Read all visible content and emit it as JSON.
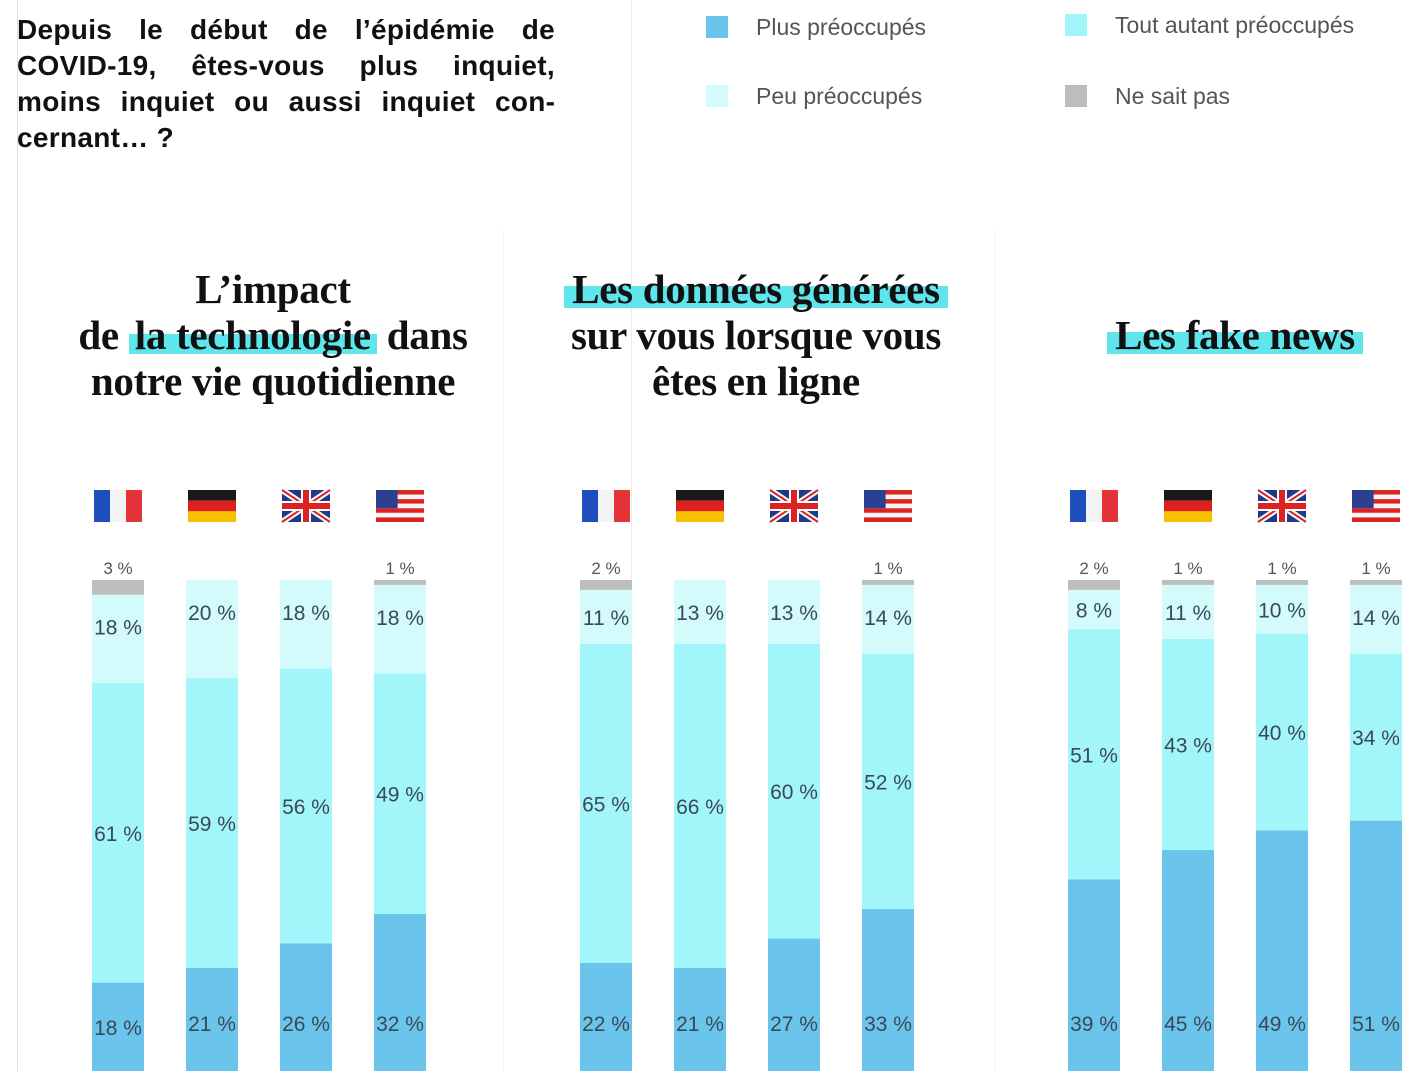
{
  "question": "Depuis le début de l’épidémie de COVID-19, êtes-vous plus inquiet, moins inquiet ou aussi inquiet con­cernant… ?",
  "legend": [
    {
      "label": "Plus préoccupés",
      "color": "#6ac4ec"
    },
    {
      "label": "Tout autant préoccupés",
      "color": "#a2f6fa"
    },
    {
      "label": "Peu préoccupés",
      "color": "#d4fbfc"
    },
    {
      "label": "Ne sait pas",
      "color": "#bdbdbd"
    }
  ],
  "panels": [
    {
      "title_lines": [
        [
          "L’impact"
        ],
        [
          "de ",
          "la technologie",
          " dans"
        ],
        [
          "notre vie quotidienne"
        ]
      ]
    },
    {
      "title_lines": [
        [
          "Les données générées"
        ],
        [
          "sur vous lorsque vous"
        ],
        [
          "êtes en ligne"
        ]
      ]
    },
    {
      "title_lines": [
        [
          "Les fake news"
        ]
      ]
    }
  ],
  "chart_data": [
    {
      "type": "bar",
      "stacked": true,
      "title": "L’impact de la technologie dans notre vie quotidienne",
      "categories": [
        "France",
        "Allemagne",
        "Royaume-Uni",
        "États-Unis"
      ],
      "series": [
        {
          "name": "Plus préoccupés",
          "values": [
            18,
            21,
            26,
            32
          ],
          "labels": [
            "18 %",
            "21 %",
            "26 %",
            "32 %"
          ]
        },
        {
          "name": "Tout autant préoccupés",
          "values": [
            61,
            59,
            56,
            49
          ],
          "labels": [
            "61 %",
            "59 %",
            "56 %",
            "49 %"
          ]
        },
        {
          "name": "Peu préoccupés",
          "values": [
            18,
            20,
            18,
            18
          ],
          "labels": [
            "18 %",
            "20 %",
            "18 %",
            "18 %"
          ]
        },
        {
          "name": "Ne sait pas",
          "values": [
            3,
            0,
            0,
            1
          ],
          "labels": [
            "3 %",
            "",
            "",
            "1 %"
          ]
        }
      ],
      "ylim": [
        0,
        100
      ]
    },
    {
      "type": "bar",
      "stacked": true,
      "title": "Les données générées sur vous lorsque vous êtes en ligne",
      "categories": [
        "France",
        "Allemagne",
        "Royaume-Uni",
        "États-Unis"
      ],
      "series": [
        {
          "name": "Plus préoccupés",
          "values": [
            22,
            21,
            27,
            33
          ],
          "labels": [
            "22 %",
            "21 %",
            "27 %",
            "33 %"
          ]
        },
        {
          "name": "Tout autant préoccupés",
          "values": [
            65,
            66,
            60,
            52
          ],
          "labels": [
            "65 %",
            "66 %",
            "60 %",
            "52 %"
          ]
        },
        {
          "name": "Peu préoccupés",
          "values": [
            11,
            13,
            13,
            14
          ],
          "labels": [
            "11 %",
            "13 %",
            "13 %",
            "14 %"
          ]
        },
        {
          "name": "Ne sait pas",
          "values": [
            2,
            0,
            0,
            1
          ],
          "labels": [
            "2 %",
            "",
            "",
            "1 %"
          ]
        }
      ],
      "ylim": [
        0,
        100
      ]
    },
    {
      "type": "bar",
      "stacked": true,
      "title": "Les fake news",
      "categories": [
        "France",
        "Allemagne",
        "Royaume-Uni",
        "États-Unis"
      ],
      "series": [
        {
          "name": "Plus préoccupés",
          "values": [
            39,
            45,
            49,
            51
          ],
          "labels": [
            "39 %",
            "45 %",
            "49 %",
            "51 %"
          ]
        },
        {
          "name": "Tout autant préoccupés",
          "values": [
            51,
            43,
            40,
            34
          ],
          "labels": [
            "51 %",
            "43 %",
            "40 %",
            "34 %"
          ]
        },
        {
          "name": "Peu préoccupés",
          "values": [
            8,
            11,
            10,
            14
          ],
          "labels": [
            "8 %",
            "11 %",
            "10 %",
            "14 %"
          ]
        },
        {
          "name": "Ne sait pas",
          "values": [
            2,
            1,
            1,
            1
          ],
          "labels": [
            "2 %",
            "1 %",
            "1 %",
            "1 %"
          ]
        }
      ],
      "ylim": [
        0,
        100
      ]
    }
  ]
}
